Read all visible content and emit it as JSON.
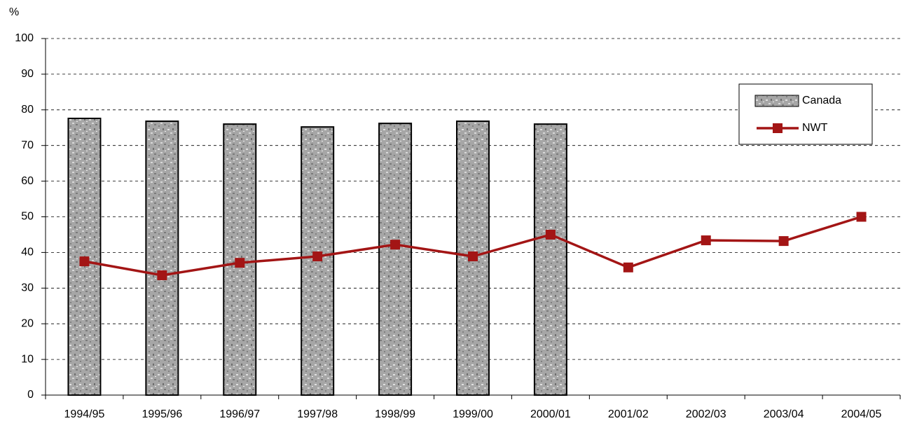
{
  "chart_data": {
    "type": "combo",
    "y_label": "%",
    "categories": [
      "1994/95",
      "1995/96",
      "1996/97",
      "1997/98",
      "1998/99",
      "1999/00",
      "2000/01",
      "2001/02",
      "2002/03",
      "2003/04",
      "2004/05"
    ],
    "series": [
      {
        "name": "Canada",
        "type": "bar",
        "color": "#a6a6a6",
        "values": [
          77.6,
          76.8,
          76.0,
          75.2,
          76.2,
          76.8,
          76.0,
          null,
          null,
          null,
          null
        ]
      },
      {
        "name": "NWT",
        "type": "line",
        "color": "#a31515",
        "values": [
          37.5,
          33.6,
          37.1,
          38.9,
          42.2,
          38.9,
          45.0,
          35.8,
          43.4,
          43.2,
          50.0
        ]
      }
    ],
    "ylim": [
      0,
      100
    ],
    "yticks": [
      0,
      10,
      20,
      30,
      40,
      50,
      60,
      70,
      80,
      90,
      100
    ],
    "grid": true,
    "legend": "top-right"
  }
}
